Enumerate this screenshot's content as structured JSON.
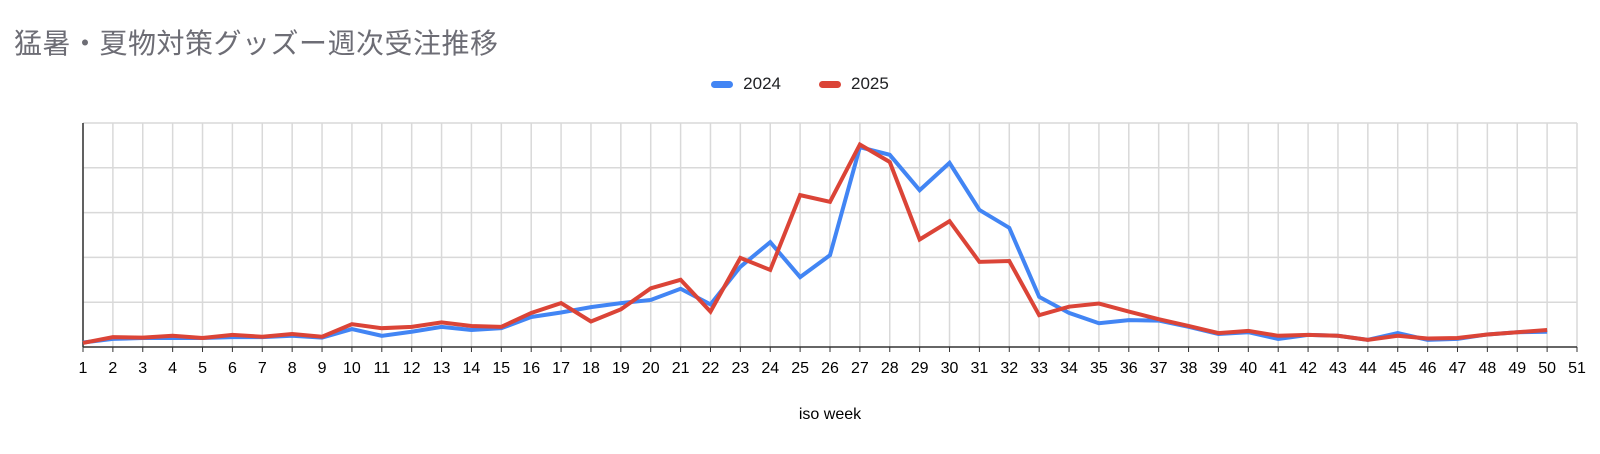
{
  "title": "猛暑・夏物対策グッズー週次受注推移",
  "colors": {
    "series_2024": "#4285F4",
    "series_2025": "#DB4437",
    "grid": "#D9D9D9",
    "axis": "#333333",
    "tick_label": "#000000",
    "title_text": "#6D6D75"
  },
  "chart_data": {
    "type": "line",
    "title": "猛暑・夏物対策グッズー週次受注推移",
    "xlabel": "iso week",
    "ylabel": "",
    "legend_position": "top-center",
    "grid": true,
    "y_axis_labels_visible": false,
    "ylim": [
      0,
      500
    ],
    "y_gridline_step": 100,
    "categories": [
      "1",
      "2",
      "3",
      "4",
      "5",
      "6",
      "7",
      "8",
      "9",
      "10",
      "11",
      "12",
      "13",
      "14",
      "15",
      "16",
      "17",
      "18",
      "19",
      "20",
      "21",
      "22",
      "23",
      "24",
      "25",
      "26",
      "27",
      "28",
      "29",
      "30",
      "31",
      "32",
      "33",
      "34",
      "35",
      "36",
      "37",
      "38",
      "39",
      "40",
      "41",
      "42",
      "43",
      "44",
      "45",
      "46",
      "47",
      "48",
      "49",
      "50",
      "51"
    ],
    "series": [
      {
        "name": "2024",
        "color": "#4285F4",
        "values": [
          10,
          18,
          20,
          20,
          20,
          22,
          22,
          25,
          21,
          40,
          25,
          34,
          45,
          38,
          42,
          67,
          77,
          89,
          98,
          105,
          130,
          95,
          179,
          234,
          156,
          205,
          446,
          429,
          350,
          411,
          306,
          266,
          112,
          76,
          53,
          60,
          59,
          45,
          29,
          33,
          18,
          27,
          25,
          16,
          31,
          16,
          18,
          28,
          33,
          34,
          null
        ]
      },
      {
        "name": "2025",
        "color": "#DB4437",
        "values": [
          9,
          22,
          21,
          25,
          20,
          27,
          23,
          29,
          23,
          51,
          42,
          45,
          55,
          47,
          45,
          76,
          98,
          57,
          84,
          131,
          150,
          79,
          199,
          172,
          339,
          324,
          452,
          413,
          240,
          281,
          190,
          192,
          71,
          90,
          97,
          79,
          62,
          47,
          31,
          36,
          25,
          27,
          25,
          16,
          25,
          19,
          20,
          28,
          33,
          38,
          null
        ]
      }
    ]
  }
}
